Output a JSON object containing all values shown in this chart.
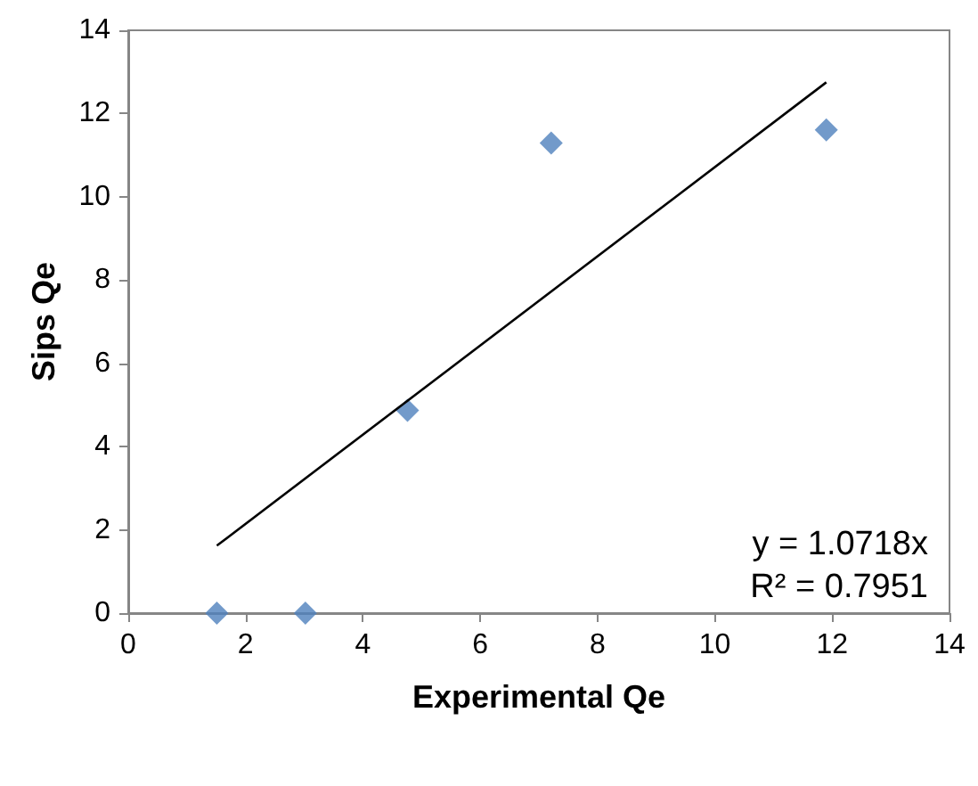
{
  "chart_data": {
    "type": "scatter",
    "xlabel": "Experimental Qe",
    "ylabel": "Sips Qe",
    "series": [
      {
        "color": "#4f81bd",
        "x": [
          1.51,
          3.02,
          4.76,
          7.21,
          11.9
        ],
        "values": [
          0,
          0,
          4.87,
          11.29,
          11.61
        ],
        "marker": "diamond"
      },
      {
        "type": "line",
        "color": "#000000",
        "x": [
          1.51,
          11.9
        ],
        "values": [
          1.62,
          12.75
        ],
        "marker": "none"
      }
    ],
    "annotations": [
      "y = 1.0718x",
      "R² = 0.7951"
    ],
    "xlim": [
      0,
      14
    ],
    "xticks": [
      0,
      2,
      4,
      6,
      8,
      10,
      12,
      14
    ],
    "ylim": [
      0,
      14
    ],
    "yticks": [
      0,
      2,
      4,
      6,
      8,
      10,
      12,
      14
    ],
    "grid": false
  }
}
